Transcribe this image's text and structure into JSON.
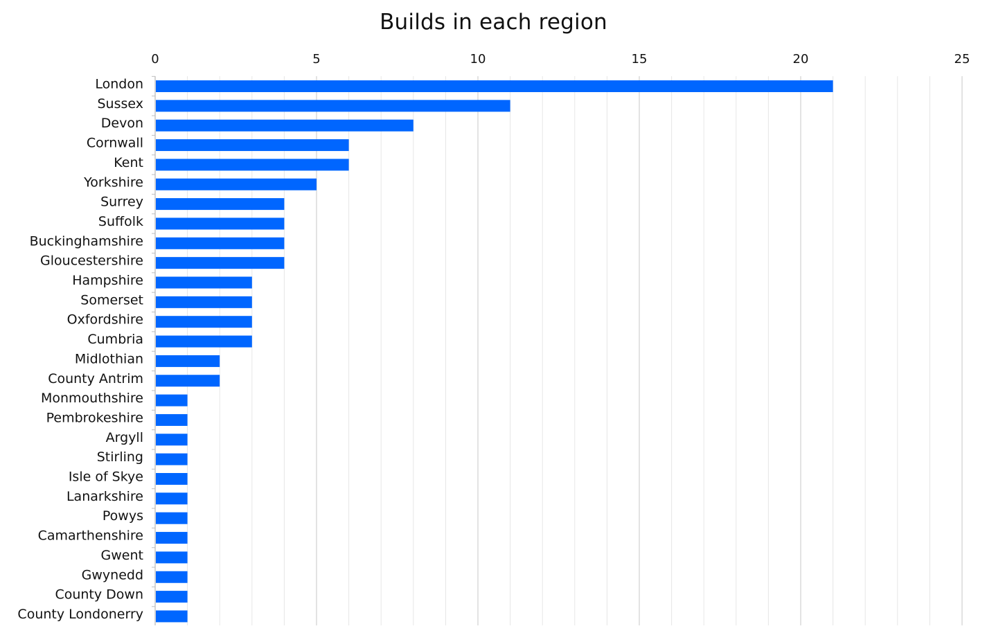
{
  "chart_data": {
    "type": "bar",
    "orientation": "horizontal",
    "title": "Builds in each region",
    "xlabel": "",
    "ylabel": "",
    "xlim": [
      0,
      25
    ],
    "x_ticks": [
      "0",
      "5",
      "10",
      "15",
      "20",
      "25"
    ],
    "x_axis_position": "top",
    "grid": true,
    "bar_color": "#0066FF",
    "gridline_color": "#E6E6E6",
    "major_gridline_color": "#D0D0D0",
    "categories": [
      "London",
      "Sussex",
      "Devon",
      "Cornwall",
      "Kent",
      "Yorkshire",
      "Surrey",
      "Suffolk",
      "Buckinghamshire",
      "Gloucestershire",
      "Hampshire",
      "Somerset",
      "Oxfordshire",
      "Cumbria",
      "Midlothian",
      "County Antrim",
      "Monmouthshire",
      "Pembrokeshire",
      "Argyll",
      "Stirling",
      "Isle of Skye",
      "Lanarkshire",
      "Powys",
      "Camarthenshire",
      "Gwent",
      "Gwynedd",
      "County Down",
      "County Londonerry"
    ],
    "values": [
      21,
      11,
      8,
      6,
      6,
      5,
      4,
      4,
      4,
      4,
      3,
      3,
      3,
      3,
      2,
      2,
      1,
      1,
      1,
      1,
      1,
      1,
      1,
      1,
      1,
      1,
      1,
      1
    ]
  }
}
